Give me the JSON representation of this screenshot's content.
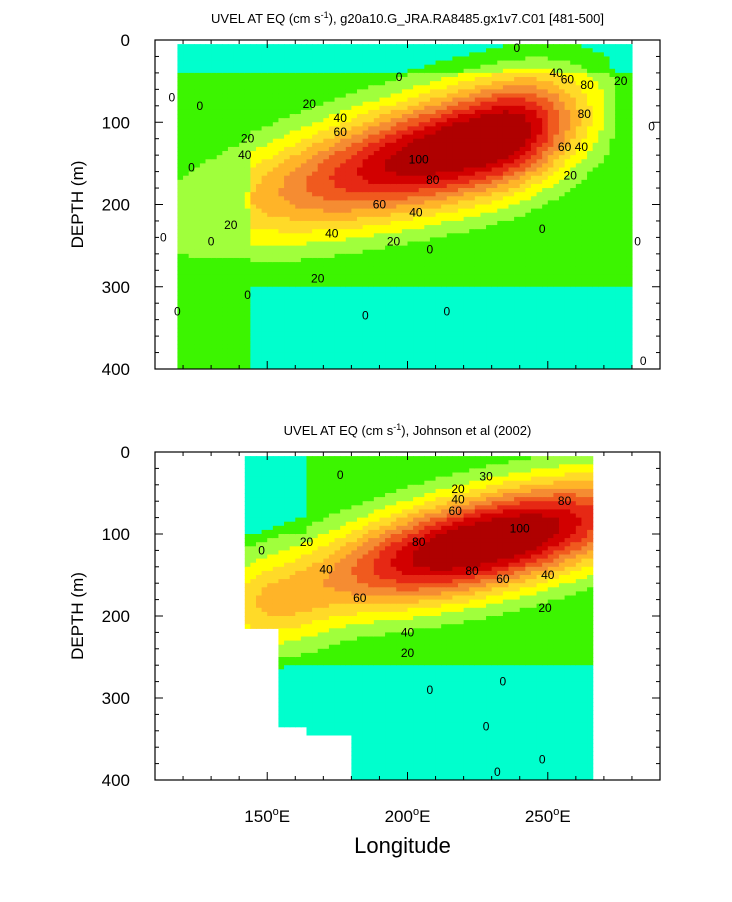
{
  "chart_data": [
    {
      "type": "heatmap",
      "title_main": "UVEL AT EQ (cm s",
      "title_sup": "-1",
      "title_rest": "), g20a10.G_JRA.RA8485.gx1v7.C01 [481-500]",
      "ylabel": "DEPTH (m)",
      "xlabel": "",
      "xlim": [
        110,
        290
      ],
      "ylim": [
        0,
        400
      ],
      "y_reversed": true,
      "y_ticks": [
        0,
        100,
        200,
        300,
        400
      ],
      "x_ticks": [
        150,
        200,
        250
      ],
      "x_tick_labels_shown": false,
      "data_extent": {
        "lon": [
          118,
          280
        ],
        "depth": [
          5,
          400
        ]
      },
      "contour_interval": 10,
      "color_levels": [
        -10,
        0,
        10,
        20,
        30,
        40,
        50,
        60,
        70,
        80,
        90,
        100
      ],
      "core": {
        "lon": 230,
        "depth": 120,
        "max_speed": 110
      },
      "contour_labels": [
        {
          "text": "0",
          "lon": 116,
          "depth": 70
        },
        {
          "text": "0",
          "lon": 123,
          "depth": 155
        },
        {
          "text": "0",
          "lon": 113,
          "depth": 240
        },
        {
          "text": "0",
          "lon": 118,
          "depth": 330
        },
        {
          "text": "0",
          "lon": 126,
          "depth": 80
        },
        {
          "text": "0",
          "lon": 130,
          "depth": 245
        },
        {
          "text": "0",
          "lon": 143,
          "depth": 310
        },
        {
          "text": "0",
          "lon": 197,
          "depth": 45
        },
        {
          "text": "0",
          "lon": 239,
          "depth": 10
        },
        {
          "text": "0",
          "lon": 248,
          "depth": 230
        },
        {
          "text": "0",
          "lon": 214,
          "depth": 330
        },
        {
          "text": "0",
          "lon": 185,
          "depth": 335
        },
        {
          "text": "0",
          "lon": 208,
          "depth": 255
        },
        {
          "text": "0",
          "lon": 282,
          "depth": 245
        },
        {
          "text": "0",
          "lon": 287,
          "depth": 105
        },
        {
          "text": "0",
          "lon": 284,
          "depth": 390
        },
        {
          "text": "20",
          "lon": 143,
          "depth": 120
        },
        {
          "text": "20",
          "lon": 165,
          "depth": 78
        },
        {
          "text": "20",
          "lon": 137,
          "depth": 225
        },
        {
          "text": "20",
          "lon": 168,
          "depth": 290
        },
        {
          "text": "20",
          "lon": 195,
          "depth": 245
        },
        {
          "text": "20",
          "lon": 258,
          "depth": 165
        },
        {
          "text": "20",
          "lon": 276,
          "depth": 50
        },
        {
          "text": "40",
          "lon": 142,
          "depth": 140
        },
        {
          "text": "40",
          "lon": 176,
          "depth": 95
        },
        {
          "text": "40",
          "lon": 173,
          "depth": 235
        },
        {
          "text": "40",
          "lon": 203,
          "depth": 210
        },
        {
          "text": "40",
          "lon": 262,
          "depth": 130
        },
        {
          "text": "40",
          "lon": 253,
          "depth": 40
        },
        {
          "text": "60",
          "lon": 176,
          "depth": 112
        },
        {
          "text": "60",
          "lon": 190,
          "depth": 200
        },
        {
          "text": "60",
          "lon": 256,
          "depth": 130
        },
        {
          "text": "60",
          "lon": 257,
          "depth": 48
        },
        {
          "text": "80",
          "lon": 209,
          "depth": 170
        },
        {
          "text": "80",
          "lon": 263,
          "depth": 90
        },
        {
          "text": "80",
          "lon": 264,
          "depth": 55
        },
        {
          "text": "100",
          "lon": 204,
          "depth": 145
        }
      ]
    },
    {
      "type": "heatmap",
      "title_main": "UVEL AT EQ (cm s",
      "title_sup": "-1",
      "title_rest": "), Johnson et al (2002)",
      "ylabel": "DEPTH (m)",
      "xlabel": "Longitude",
      "xlim": [
        110,
        290
      ],
      "ylim": [
        0,
        400
      ],
      "y_reversed": true,
      "y_ticks": [
        0,
        100,
        200,
        300,
        400
      ],
      "x_ticks": [
        150,
        200,
        250
      ],
      "x_tick_labels": [
        "150",
        "200",
        "250"
      ],
      "x_tick_suffix_sup": "o",
      "x_tick_suffix": "E",
      "data_extent": {
        "lon": [
          143,
          265
        ],
        "depth": [
          5,
          400
        ]
      },
      "contour_interval": 10,
      "color_levels": [
        -10,
        0,
        10,
        20,
        30,
        40,
        50,
        60,
        70,
        80,
        90,
        100
      ],
      "core": {
        "lon": 228,
        "depth": 110,
        "max_speed": 110
      },
      "contour_labels": [
        {
          "text": "0",
          "lon": 176,
          "depth": 28
        },
        {
          "text": "0",
          "lon": 148,
          "depth": 120
        },
        {
          "text": "0",
          "lon": 208,
          "depth": 290
        },
        {
          "text": "0",
          "lon": 228,
          "depth": 335
        },
        {
          "text": "0",
          "lon": 234,
          "depth": 280
        },
        {
          "text": "0",
          "lon": 248,
          "depth": 375
        },
        {
          "text": "0",
          "lon": 232,
          "depth": 390
        },
        {
          "text": "20",
          "lon": 164,
          "depth": 110
        },
        {
          "text": "20",
          "lon": 218,
          "depth": 45
        },
        {
          "text": "20",
          "lon": 200,
          "depth": 245
        },
        {
          "text": "20",
          "lon": 249,
          "depth": 190
        },
        {
          "text": "30",
          "lon": 228,
          "depth": 30
        },
        {
          "text": "40",
          "lon": 171,
          "depth": 143
        },
        {
          "text": "40",
          "lon": 218,
          "depth": 58
        },
        {
          "text": "40",
          "lon": 200,
          "depth": 220
        },
        {
          "text": "40",
          "lon": 250,
          "depth": 150
        },
        {
          "text": "60",
          "lon": 217,
          "depth": 72
        },
        {
          "text": "60",
          "lon": 183,
          "depth": 178
        },
        {
          "text": "60",
          "lon": 234,
          "depth": 155
        },
        {
          "text": "80",
          "lon": 204,
          "depth": 110
        },
        {
          "text": "80",
          "lon": 256,
          "depth": 60
        },
        {
          "text": "80",
          "lon": 223,
          "depth": 145
        },
        {
          "text": "100",
          "lon": 240,
          "depth": 93
        }
      ]
    }
  ]
}
